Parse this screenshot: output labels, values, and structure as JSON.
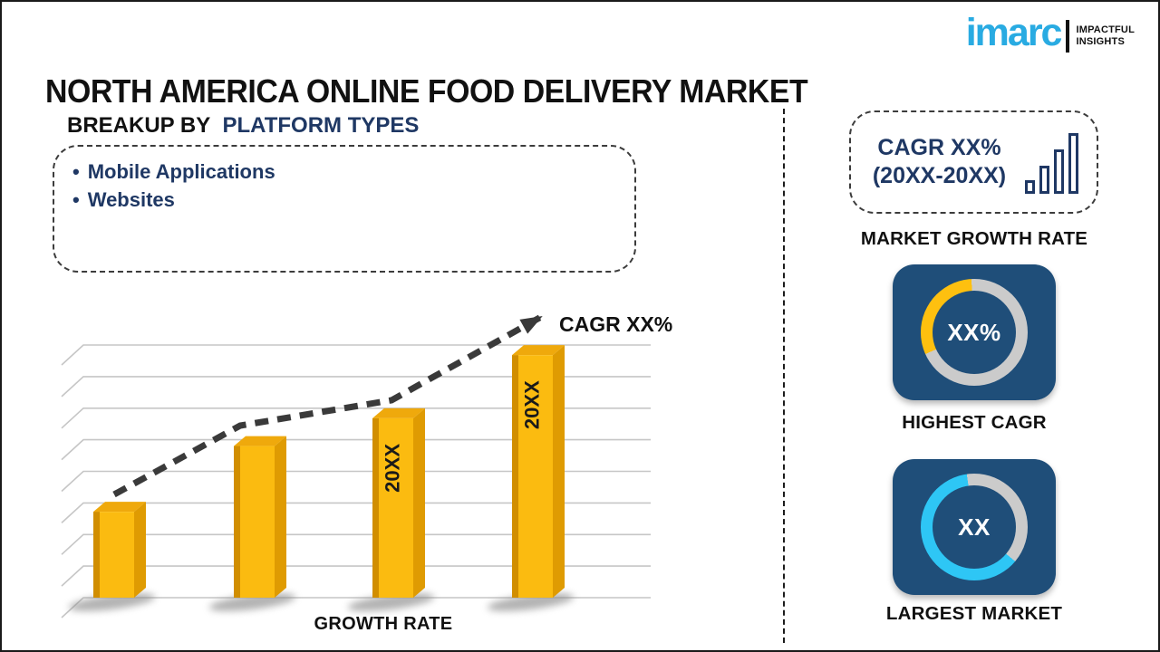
{
  "title": "NORTH AMERICA ONLINE FOOD DELIVERY MARKET",
  "logo": {
    "brand": "imarc",
    "tagline_line1": "IMPACTFUL",
    "tagline_line2": "INSIGHTS",
    "brand_color": "#29ABE2"
  },
  "breakup": {
    "heading_prefix": "BREAKUP BY",
    "heading_highlight": "PLATFORM TYPES",
    "bullet": "•",
    "items": [
      "Mobile Applications",
      "Websites"
    ]
  },
  "chart_data": {
    "type": "bar",
    "title": "",
    "xlabel": "GROWTH RATE",
    "ylabel": "",
    "categories": [
      "",
      "",
      "20XX",
      "20XX"
    ],
    "values_pct_of_plot_height": [
      34,
      60,
      71,
      96
    ],
    "axis_tick_labels_visible": false,
    "gridlines": 9,
    "grid_on": true,
    "style": "3d-gold-bars",
    "trend": {
      "label": "CAGR XX%",
      "style": "dashed-arrow",
      "points": [
        [
          71,
          208
        ],
        [
          210,
          132
        ],
        [
          377,
          104
        ],
        [
          542,
          12
        ]
      ]
    }
  },
  "right_panel": {
    "cagr_card": {
      "line1": "CAGR XX%",
      "line2": "(20XX-20XX)",
      "icon": "bar-chart-icon",
      "icon_bar_heights": [
        15,
        31,
        49,
        67
      ],
      "caption": "MARKET GROWTH RATE"
    },
    "highest_cagr": {
      "value": "XX%",
      "caption": "HIGHEST CAGR",
      "ring_segments": [
        {
          "color": "#CBCBCB",
          "from": 0,
          "to": 246
        },
        {
          "color": "#FEC00F",
          "from": 246,
          "to": 357
        },
        {
          "color": "#CBCBCB",
          "from": 357,
          "to": 360
        }
      ]
    },
    "largest_market": {
      "value": "XX",
      "caption": "LARGEST MARKET",
      "ring_segments": [
        {
          "color": "#CBCBCB",
          "from": 0,
          "to": 130
        },
        {
          "color": "#2EC6F5",
          "from": 130,
          "to": 352
        },
        {
          "color": "#CBCBCB",
          "from": 352,
          "to": 360
        }
      ]
    }
  },
  "colors": {
    "navy_text": "#1F3864",
    "card_blue": "#1F4E79",
    "bar_front": "#FBBB10",
    "bar_left_strip": "#D18E00",
    "bar_side": "#DF9B02",
    "bar_top": "#EFA90C",
    "grid": "#C6C6C6",
    "shadow": "#8A8A8A",
    "trend_line": "#3A3A3A",
    "label_black": "#111111"
  }
}
